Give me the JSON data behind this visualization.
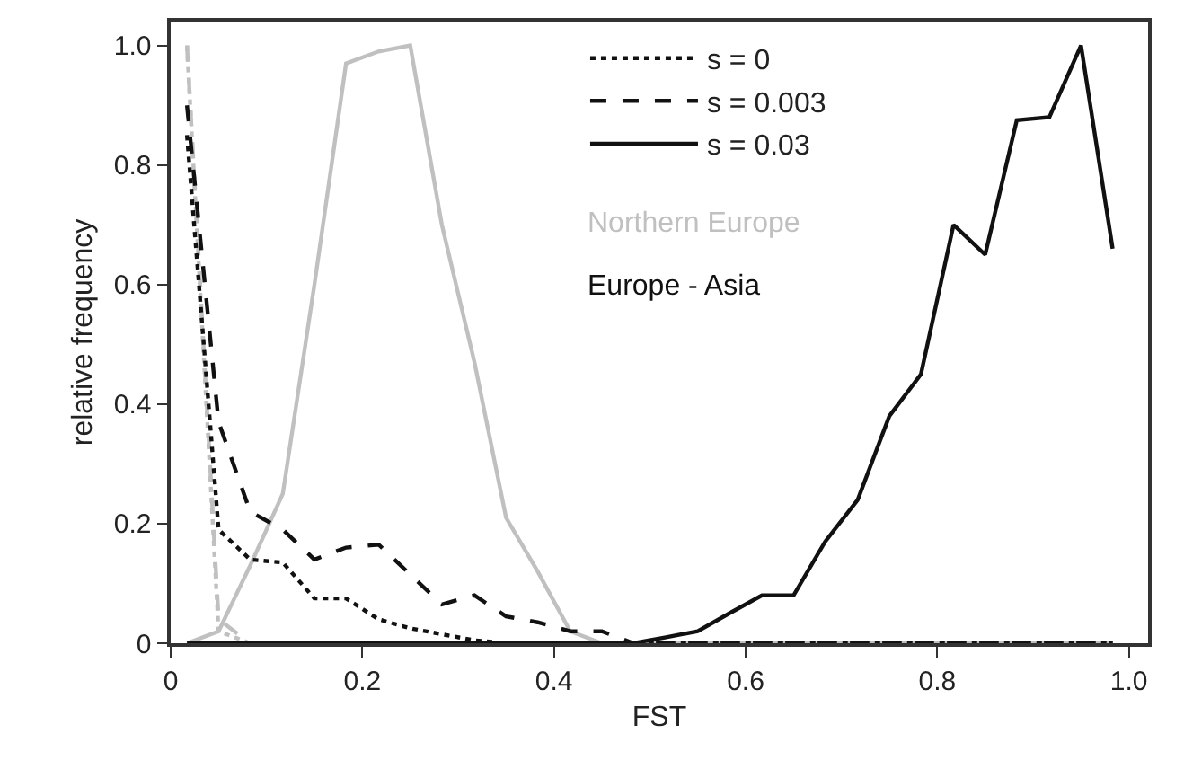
{
  "chart_data": {
    "type": "line",
    "xlabel": "FST",
    "ylabel": "relative frequency",
    "x": [
      0.017,
      0.05,
      0.083,
      0.117,
      0.15,
      0.183,
      0.217,
      0.25,
      0.283,
      0.317,
      0.35,
      0.383,
      0.417,
      0.45,
      0.483,
      0.517,
      0.55,
      0.583,
      0.617,
      0.65,
      0.683,
      0.717,
      0.75,
      0.783,
      0.817,
      0.85,
      0.883,
      0.917,
      0.95,
      0.983
    ],
    "xlim": [
      0,
      1.02
    ],
    "ylim": [
      0,
      1.04
    ],
    "xticks": [
      0,
      0.2,
      0.4,
      0.6,
      0.8,
      {
        "value": 1,
        "label": "1.0"
      }
    ],
    "yticks": [
      0,
      0.2,
      0.4,
      0.6,
      0.8,
      {
        "value": 1,
        "label": "1.0"
      }
    ],
    "series": [
      {
        "color": "#c0c0c0",
        "line_style": "dotted",
        "values": [
          1.0,
          0.02,
          0,
          0,
          0,
          0,
          0,
          0,
          0,
          0,
          0,
          0,
          0,
          0,
          0,
          0,
          0,
          0,
          0,
          0,
          0,
          0,
          0,
          0,
          0,
          0,
          0,
          0,
          0,
          0
        ]
      },
      {
        "color": "#c0c0c0",
        "line_style": "dashed",
        "values": [
          1.0,
          0.04,
          0,
          0,
          0,
          0,
          0,
          0,
          0,
          0,
          0,
          0,
          0,
          0,
          0,
          0,
          0,
          0,
          0,
          0,
          0,
          0,
          0,
          0,
          0,
          0,
          0,
          0,
          0,
          0
        ]
      },
      {
        "color": "#c0c0c0",
        "line_style": "solid",
        "values": [
          0,
          0.02,
          0.13,
          0.25,
          0.6,
          0.97,
          0.99,
          1.0,
          0.7,
          0.47,
          0.21,
          0.12,
          0.02,
          0,
          0,
          0,
          0,
          0,
          0,
          0,
          0,
          0,
          0,
          0,
          0,
          0,
          0,
          0,
          0,
          0
        ]
      },
      {
        "name": "s = 0",
        "color": "#111111",
        "line_style": "dotted",
        "values": [
          0.85,
          0.19,
          0.14,
          0.135,
          0.075,
          0.075,
          0.04,
          0.025,
          0.015,
          0.005,
          0,
          0,
          0,
          0,
          0,
          0,
          0,
          0,
          0,
          0,
          0,
          0,
          0,
          0,
          0,
          0,
          0,
          0,
          0,
          0
        ]
      },
      {
        "name": "s = 0.003",
        "color": "#111111",
        "line_style": "dashed",
        "values": [
          0.9,
          0.37,
          0.22,
          0.19,
          0.14,
          0.16,
          0.165,
          0.115,
          0.065,
          0.08,
          0.045,
          0.035,
          0.02,
          0.02,
          0,
          0,
          0,
          0,
          0,
          0,
          0,
          0,
          0,
          0,
          0,
          0,
          0,
          0,
          0,
          0
        ]
      },
      {
        "name": "s = 0.03",
        "color": "#111111",
        "line_style": "solid",
        "values": [
          0,
          0,
          0,
          0,
          0,
          0,
          0,
          0,
          0,
          0,
          0,
          0,
          0,
          0,
          0,
          0.01,
          0.02,
          0.05,
          0.08,
          0.08,
          0.17,
          0.24,
          0.38,
          0.45,
          0.7,
          0.65,
          0.875,
          0.88,
          1.0,
          0.66
        ]
      }
    ],
    "annotations": [
      "Northern Europe",
      "Europe - Asia"
    ],
    "legend": "top"
  }
}
